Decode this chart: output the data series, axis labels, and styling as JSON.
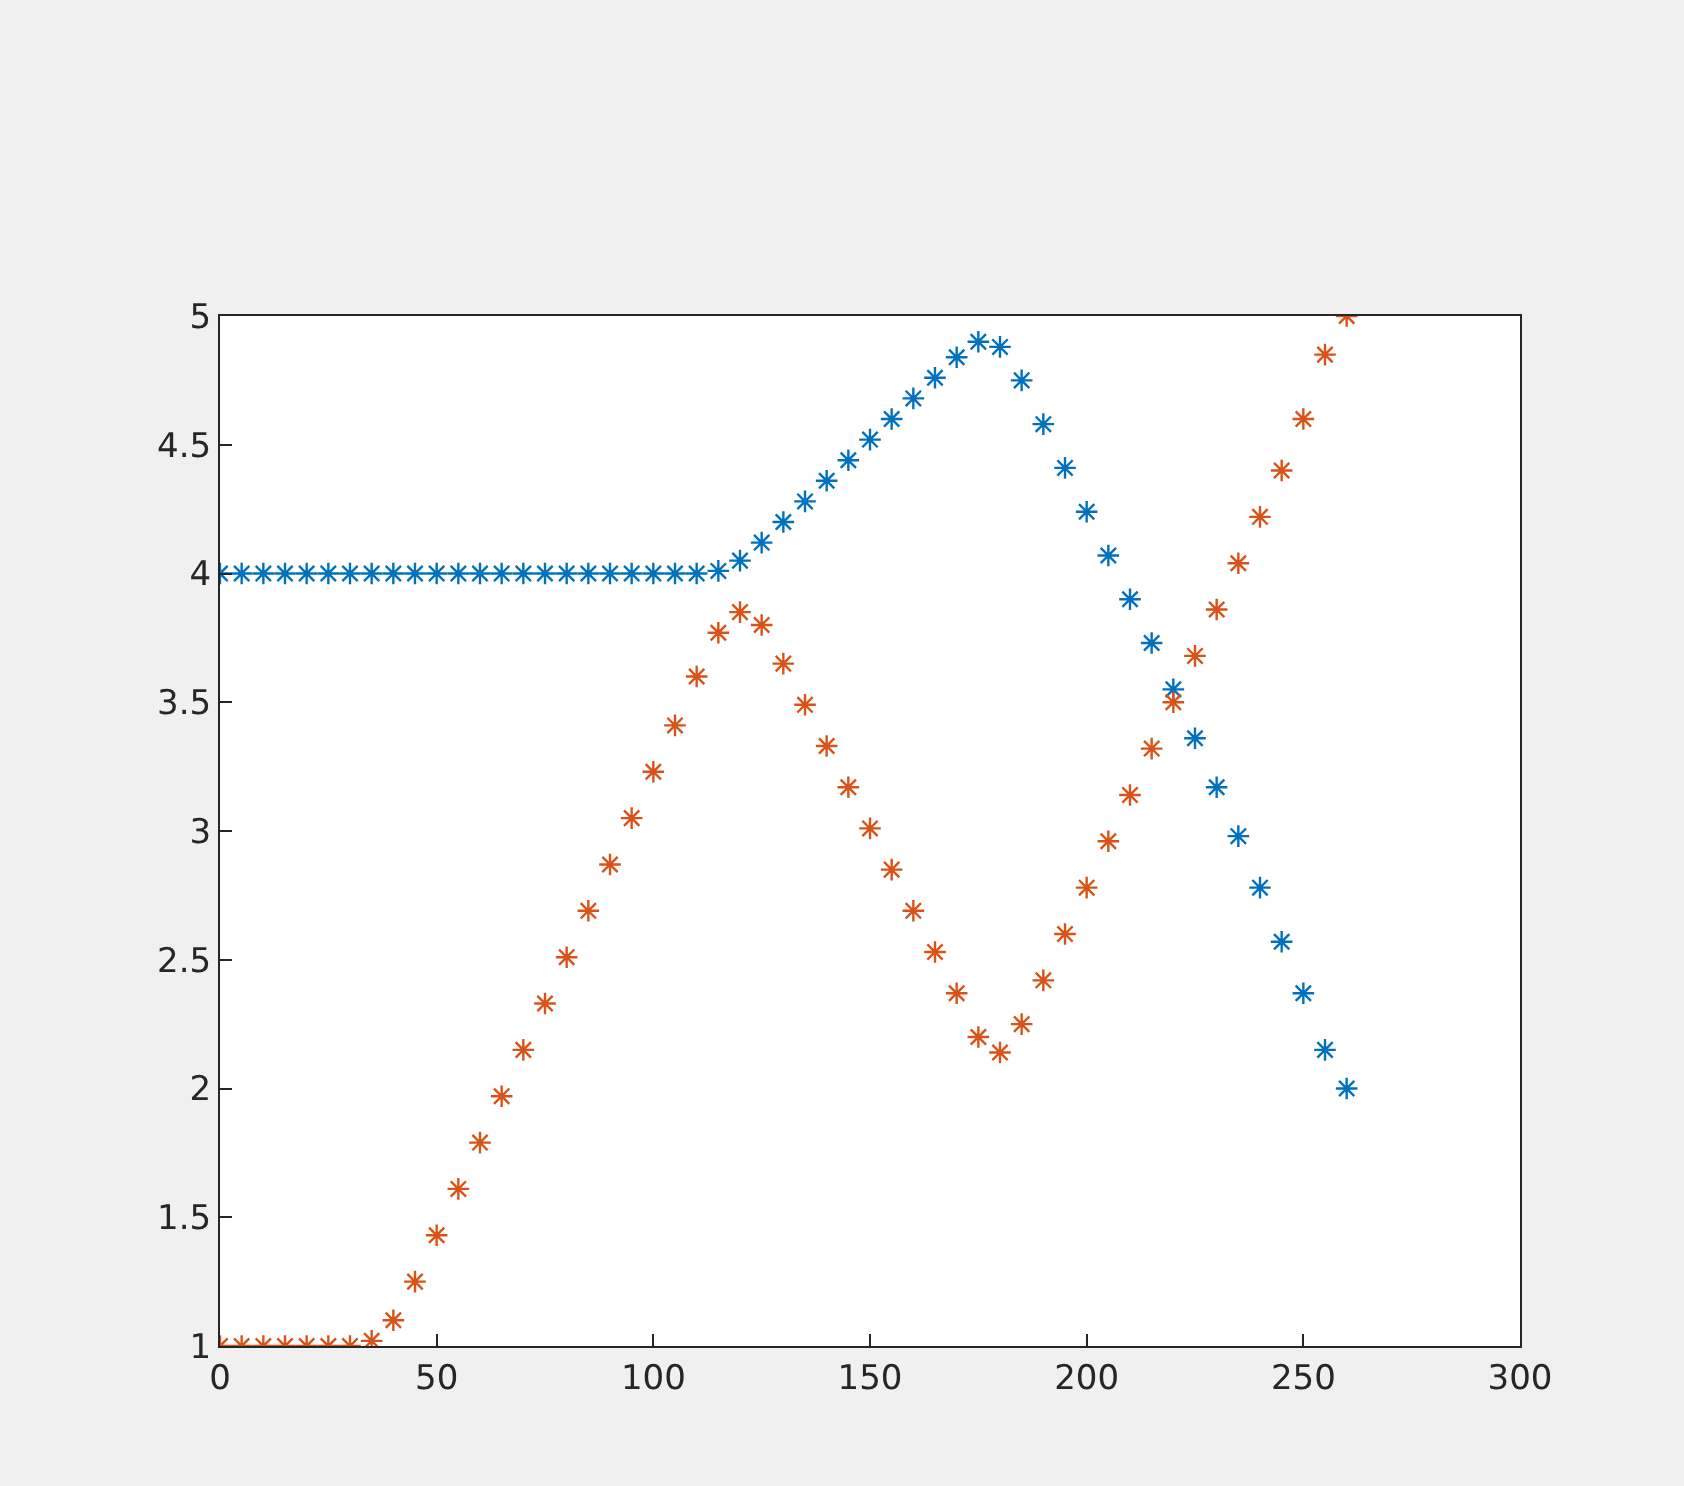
{
  "chart_data": {
    "type": "scatter",
    "marker": "cross",
    "x": [
      0,
      5,
      10,
      15,
      20,
      25,
      30,
      35,
      40,
      45,
      50,
      55,
      60,
      65,
      70,
      75,
      80,
      85,
      90,
      95,
      100,
      105,
      110,
      115,
      120,
      125,
      130,
      135,
      140,
      145,
      150,
      155,
      160,
      165,
      170,
      175,
      180,
      185,
      190,
      195,
      200,
      205,
      210,
      215,
      220,
      225,
      230,
      235,
      240,
      245,
      250,
      255,
      260
    ],
    "series": [
      {
        "color": "#0072bd",
        "values": [
          4,
          4,
          4,
          4,
          4,
          4,
          4,
          4,
          4,
          4,
          4,
          4,
          4,
          4,
          4,
          4,
          4,
          4,
          4,
          4,
          4,
          4,
          4,
          4.01,
          4.05,
          4.12,
          4.2,
          4.28,
          4.36,
          4.44,
          4.52,
          4.6,
          4.68,
          4.76,
          4.84,
          4.9,
          4.88,
          4.75,
          4.58,
          4.41,
          4.24,
          4.07,
          3.9,
          3.73,
          3.55,
          3.36,
          3.17,
          2.98,
          2.78,
          2.57,
          2.37,
          2.15,
          2.0
        ]
      },
      {
        "color": "#d95319",
        "values": [
          1,
          1,
          1,
          1,
          1,
          1,
          1,
          1.02,
          1.1,
          1.25,
          1.43,
          1.61,
          1.79,
          1.97,
          2.15,
          2.33,
          2.51,
          2.69,
          2.87,
          3.05,
          3.23,
          3.41,
          3.6,
          3.77,
          3.85,
          3.8,
          3.65,
          3.49,
          3.33,
          3.17,
          3.01,
          2.85,
          2.69,
          2.53,
          2.37,
          2.2,
          2.14,
          2.25,
          2.42,
          2.6,
          2.78,
          2.96,
          3.14,
          3.32,
          3.5,
          3.68,
          3.86,
          4.04,
          4.22,
          4.4,
          4.6,
          4.85,
          5.0
        ]
      }
    ],
    "xlim": [
      0,
      300
    ],
    "xticks": [
      0,
      50,
      100,
      150,
      200,
      250,
      300
    ],
    "ylim": [
      1,
      5
    ],
    "yticks": [
      1,
      1.5,
      2,
      2.5,
      3,
      3.5,
      4,
      4.5,
      5
    ]
  }
}
